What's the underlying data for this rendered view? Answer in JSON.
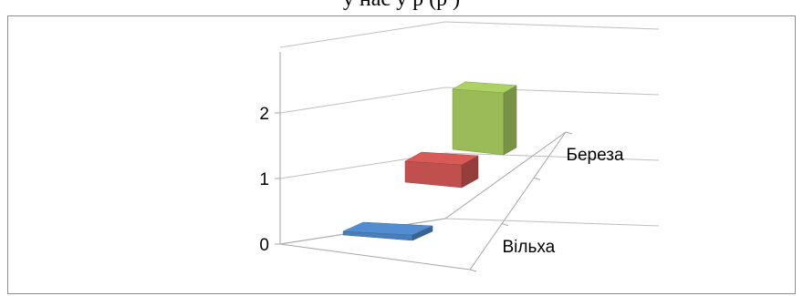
{
  "caption": {
    "part1": "у нас у       ",
    "part2": "    ",
    "part3": "р  ",
    "part4": "  (р  )"
  },
  "chart_data": {
    "type": "bar",
    "subtype": "3d-column",
    "categories": [
      "Вільха",
      "",
      "Береза"
    ],
    "series": [
      {
        "values": [
          0.1,
          0.5,
          1.3
        ]
      }
    ],
    "bar_colors": [
      "#4a7ebb",
      "#c0504d",
      "#9bbb59"
    ],
    "yticks": [
      "0",
      "1",
      "2"
    ],
    "ylim": [
      0,
      3
    ],
    "grid": true,
    "legend": "none"
  }
}
